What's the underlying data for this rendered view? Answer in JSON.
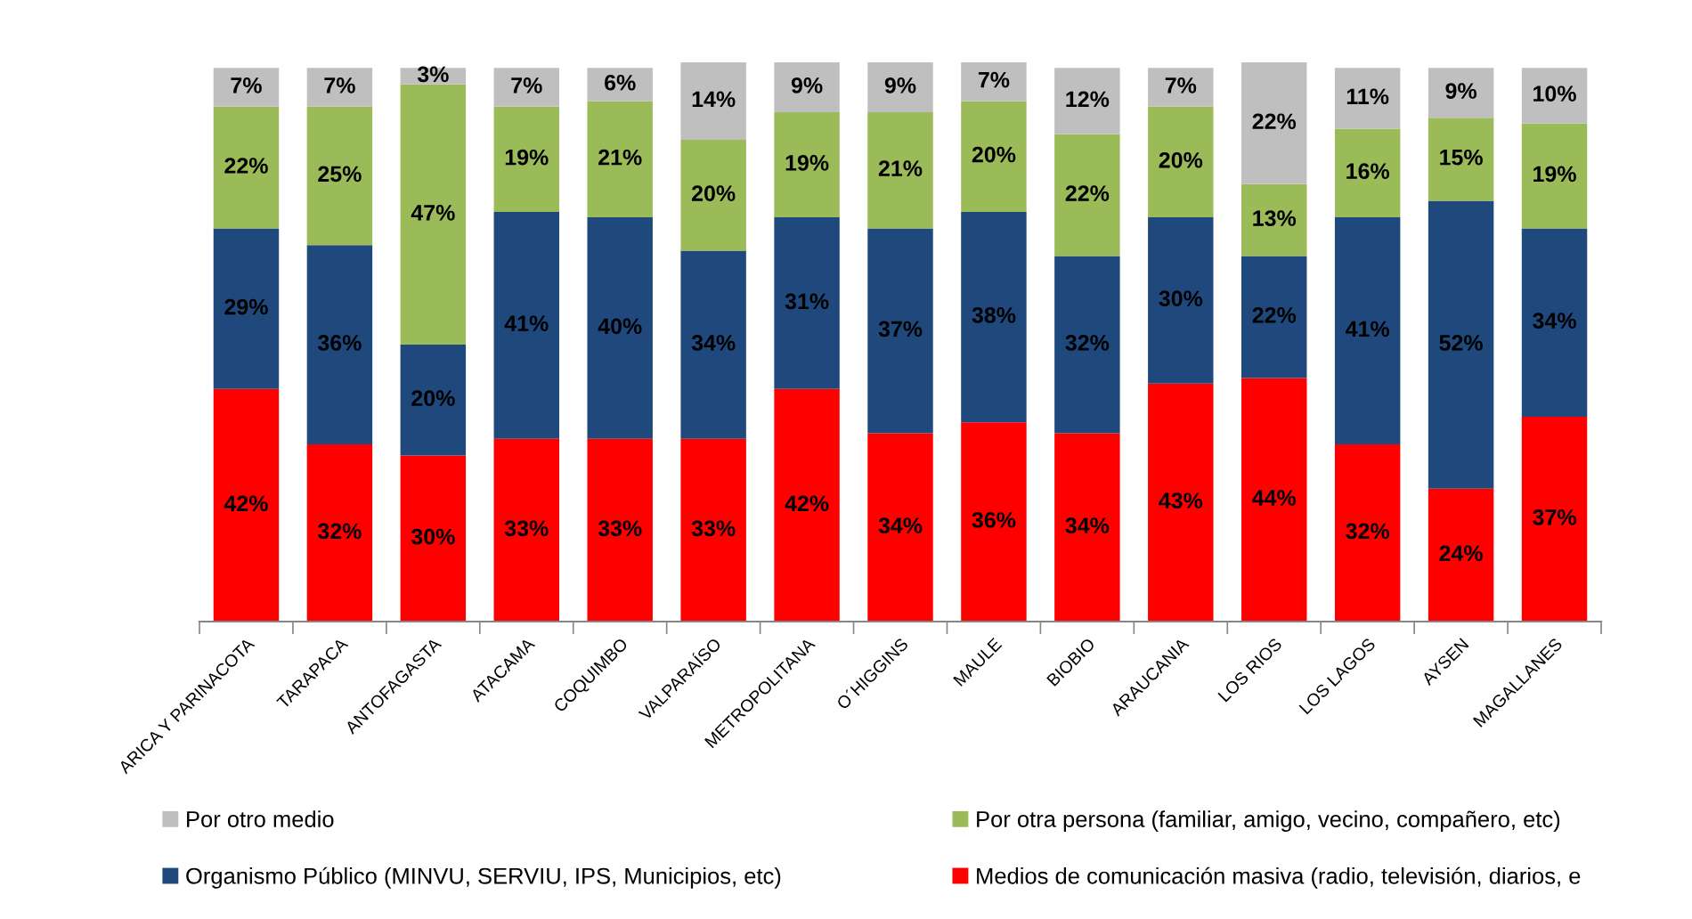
{
  "chart_data": {
    "type": "bar",
    "stacked": true,
    "legend": "bottom",
    "categories": [
      "ARICA Y PARINACOTA",
      "TARAPACA",
      "ANTOFAGASTA",
      "ATACAMA",
      "COQUIMBO",
      "VALPARAÍSO",
      "METROPOLITANA",
      "O´HIGGINS",
      "MAULE",
      "BIOBIO",
      "ARAUCANIA",
      "LOS RIOS",
      "LOS LAGOS",
      "AYSEN",
      "MAGALLANES"
    ],
    "series": [
      {
        "name": "Medios de comunicación masiva (radio, televisión, diarios, e",
        "color": "#ff0000",
        "values": [
          42,
          32,
          30,
          33,
          33,
          33,
          42,
          34,
          36,
          34,
          43,
          44,
          32,
          24,
          37
        ],
        "value_labels": [
          "42%",
          "32%",
          "30%",
          "33%",
          "33%",
          "33%",
          "42%",
          "34%",
          "36%",
          "34%",
          "43%",
          "44%",
          "32%",
          "24%",
          "37%"
        ]
      },
      {
        "name": "Organismo Público (MINVU, SERVIU, IPS, Municipios, etc)",
        "color": "#1f497d",
        "values": [
          29,
          36,
          20,
          41,
          40,
          34,
          31,
          37,
          38,
          32,
          30,
          22,
          41,
          52,
          34
        ],
        "value_labels": [
          "29%",
          "36%",
          "20%",
          "41%",
          "40%",
          "34%",
          "31%",
          "37%",
          "38%",
          "32%",
          "30%",
          "22%",
          "41%",
          "52%",
          "34%"
        ]
      },
      {
        "name": "Por otra persona (familiar, amigo, vecino, compañero, etc)",
        "color": "#9bbb59",
        "values": [
          22,
          25,
          47,
          19,
          21,
          20,
          19,
          21,
          20,
          22,
          20,
          13,
          16,
          15,
          19
        ],
        "value_labels": [
          "22%",
          "25%",
          "47%",
          "19%",
          "21%",
          "20%",
          "19%",
          "21%",
          "20%",
          "22%",
          "20%",
          "13%",
          "16%",
          "15%",
          "19%"
        ]
      },
      {
        "name": "Por otro medio",
        "color": "#bfbfbf",
        "values": [
          7,
          7,
          3,
          7,
          6,
          14,
          9,
          9,
          7,
          12,
          7,
          22,
          11,
          9,
          10
        ],
        "value_labels": [
          "7%",
          "7%",
          "3%",
          "7%",
          "6%",
          "14%",
          "9%",
          "9%",
          "7%",
          "12%",
          "7%",
          "22%",
          "11%",
          "9%",
          "10%"
        ]
      }
    ]
  }
}
